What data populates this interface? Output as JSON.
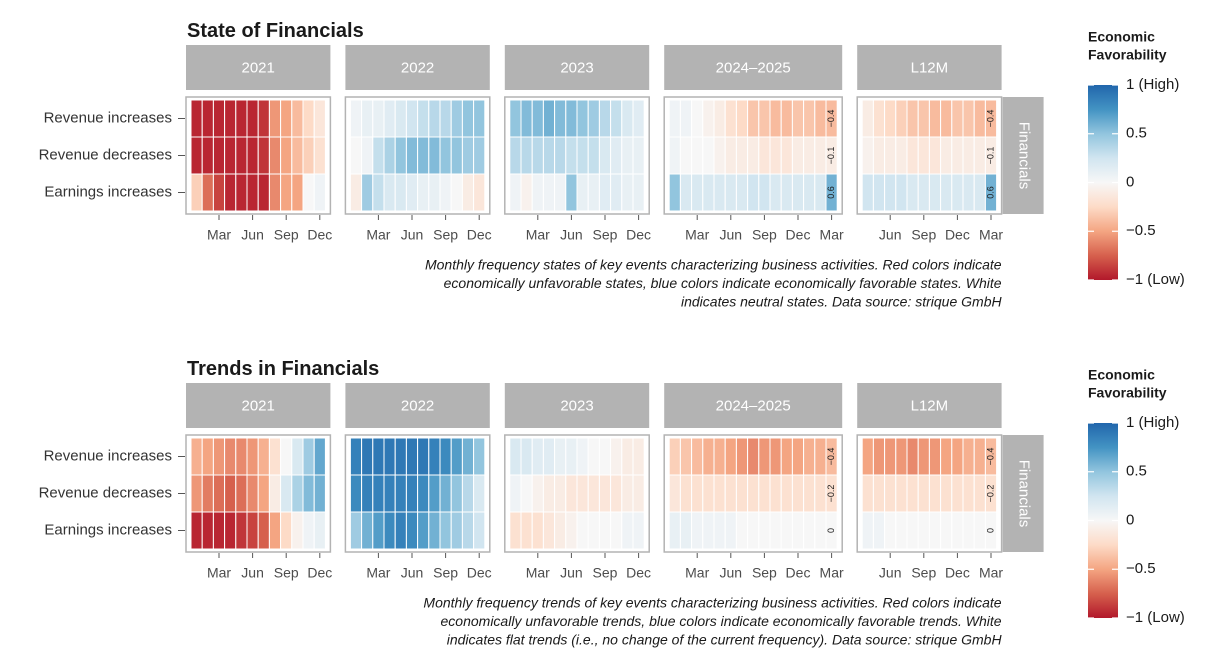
{
  "chart_data": [
    {
      "type": "heatmap",
      "title": "State of Financials",
      "rows": [
        "Revenue increases",
        "Revenue decreases",
        "Earnings increases"
      ],
      "facet": "Financials",
      "panels": [
        {
          "name": "2021",
          "categories": [
            null,
            null,
            "Mar",
            null,
            null,
            "Jun",
            null,
            null,
            "Sep",
            null,
            null,
            "Dec"
          ],
          "values": [
            [
              -0.95,
              -0.95,
              -0.95,
              -0.95,
              -0.95,
              -0.95,
              -0.9,
              -0.55,
              -0.5,
              -0.4,
              -0.25,
              -0.15
            ],
            [
              -0.95,
              -0.95,
              -0.95,
              -0.95,
              -0.95,
              -0.95,
              -0.9,
              -0.6,
              -0.5,
              -0.4,
              -0.3,
              -0.2
            ],
            [
              -0.3,
              -0.7,
              -0.85,
              -0.95,
              -0.95,
              -0.95,
              -0.95,
              -0.6,
              -0.5,
              -0.5,
              0,
              0.05
            ]
          ]
        },
        {
          "name": "2022",
          "categories": [
            null,
            null,
            "Mar",
            null,
            null,
            "Jun",
            null,
            null,
            "Sep",
            null,
            null,
            "Dec"
          ],
          "values": [
            [
              0.05,
              0.1,
              0.1,
              0.15,
              0.2,
              0.25,
              0.3,
              0.35,
              0.35,
              0.45,
              0.5,
              0.5
            ],
            [
              0,
              0.05,
              0.3,
              0.4,
              0.5,
              0.55,
              0.55,
              0.55,
              0.5,
              0.5,
              0.45,
              0.45
            ],
            [
              -0.1,
              0.45,
              0.3,
              0.2,
              0.2,
              0.15,
              0.1,
              0.1,
              0.05,
              0,
              -0.1,
              -0.15
            ]
          ]
        },
        {
          "name": "2023",
          "categories": [
            null,
            null,
            "Mar",
            null,
            null,
            "Jun",
            null,
            null,
            "Sep",
            null,
            null,
            "Dec"
          ],
          "values": [
            [
              0.5,
              0.55,
              0.55,
              0.6,
              0.55,
              0.55,
              0.5,
              0.45,
              0.35,
              0.3,
              0.2,
              0.15
            ],
            [
              0.35,
              0.35,
              0.35,
              0.35,
              0.35,
              0.3,
              0.3,
              0.3,
              0.2,
              0.15,
              0.1,
              0.1
            ],
            [
              0.05,
              -0.05,
              0.05,
              0.05,
              0.05,
              0.5,
              0.1,
              0.1,
              0.15,
              0.15,
              0.1,
              0.1
            ]
          ]
        },
        {
          "name": "2024–2025",
          "categories": [
            null,
            null,
            "Mar",
            null,
            null,
            "Jun",
            null,
            null,
            "Sep",
            null,
            null,
            "Dec",
            null,
            null,
            "Mar"
          ],
          "values": [
            [
              0.05,
              0.05,
              0,
              -0.05,
              -0.1,
              -0.2,
              -0.25,
              -0.35,
              -0.35,
              -0.4,
              -0.4,
              -0.35,
              -0.35,
              -0.4,
              -0.4
            ],
            [
              0.05,
              0,
              0,
              0,
              -0.05,
              -0.1,
              -0.1,
              -0.1,
              -0.15,
              -0.15,
              -0.15,
              -0.1,
              -0.1,
              -0.1,
              -0.1
            ],
            [
              0.5,
              0.2,
              0.2,
              0.2,
              0.2,
              0.2,
              0.2,
              0.25,
              0.25,
              0.2,
              0.2,
              0.2,
              0.2,
              0.2,
              0.6
            ]
          ],
          "value_labels": [
            "−0.4",
            "−0.1",
            "0.6"
          ]
        },
        {
          "name": "L12M",
          "categories": [
            null,
            null,
            "Jun",
            null,
            null,
            "Sep",
            null,
            null,
            "Dec",
            null,
            null,
            "Mar"
          ],
          "values": [
            [
              -0.1,
              -0.2,
              -0.25,
              -0.3,
              -0.35,
              -0.35,
              -0.4,
              -0.4,
              -0.35,
              -0.35,
              -0.4,
              -0.4
            ],
            [
              -0.05,
              -0.1,
              -0.1,
              -0.1,
              -0.15,
              -0.15,
              -0.15,
              -0.1,
              -0.1,
              -0.1,
              -0.1,
              -0.1
            ],
            [
              0.25,
              0.25,
              0.25,
              0.25,
              0.2,
              0.2,
              0.2,
              0.2,
              0.2,
              0.2,
              0.2,
              0.6
            ]
          ],
          "value_labels": [
            "−0.4",
            "−0.1",
            "0.6"
          ]
        }
      ],
      "caption": [
        "Monthly frequency states of key events characterizing business activities. Red colors indicate",
        "economically unfavorable states, blue colors indicate economically favorable states. White",
        "indicates neutral states. Data source: strique GmbH"
      ],
      "colorscale": [
        "#b2182b",
        "#d6604d",
        "#f4a582",
        "#fddbc7",
        "#f7f7f7",
        "#d1e5f0",
        "#92c5de",
        "#4393c3",
        "#2166ac"
      ],
      "legend": {
        "title": [
          "Economic",
          "Favorability"
        ],
        "clim": [
          -1,
          1
        ],
        "ticks": [
          {
            "value": 1,
            "label": "1 (High)"
          },
          0.5,
          0,
          {
            "value": -0.5,
            "label": "−0.5"
          },
          {
            "value": -1,
            "label": "−1 (Low)"
          }
        ]
      }
    },
    {
      "type": "heatmap",
      "title": "Trends in Financials",
      "rows": [
        "Revenue increases",
        "Revenue decreases",
        "Earnings increases"
      ],
      "facet": "Financials",
      "panels": [
        {
          "name": "2021",
          "categories": [
            null,
            null,
            "Mar",
            null,
            null,
            "Jun",
            null,
            null,
            "Sep",
            null,
            null,
            "Dec"
          ],
          "values": [
            [
              -0.45,
              -0.5,
              -0.55,
              -0.6,
              -0.6,
              -0.55,
              -0.45,
              -0.2,
              0,
              0.2,
              0.45,
              0.65
            ],
            [
              -0.55,
              -0.65,
              -0.7,
              -0.75,
              -0.7,
              -0.6,
              -0.5,
              -0.1,
              0.2,
              0.4,
              0.55,
              0.6
            ],
            [
              -0.95,
              -0.95,
              -0.95,
              -0.95,
              -0.9,
              -0.85,
              -0.75,
              -0.5,
              -0.25,
              -0.05,
              0.05,
              0.1
            ]
          ]
        },
        {
          "name": "2022",
          "categories": [
            null,
            null,
            "Mar",
            null,
            null,
            "Jun",
            null,
            null,
            "Sep",
            null,
            null,
            "Dec"
          ],
          "values": [
            [
              0.85,
              0.9,
              0.9,
              0.9,
              0.9,
              0.9,
              0.9,
              0.85,
              0.8,
              0.7,
              0.6,
              0.5
            ],
            [
              0.8,
              0.85,
              0.85,
              0.85,
              0.85,
              0.85,
              0.8,
              0.7,
              0.6,
              0.5,
              0.35,
              0.2
            ],
            [
              0.45,
              0.6,
              0.7,
              0.8,
              0.85,
              0.8,
              0.7,
              0.6,
              0.5,
              0.45,
              0.35,
              0.25
            ]
          ]
        },
        {
          "name": "2023",
          "categories": [
            null,
            null,
            "Mar",
            null,
            null,
            "Jun",
            null,
            null,
            "Sep",
            null,
            null,
            "Dec"
          ],
          "values": [
            [
              0.2,
              0.2,
              0.15,
              0.15,
              0.1,
              0.1,
              0.05,
              0,
              0,
              -0.05,
              -0.1,
              -0.1
            ],
            [
              0.05,
              0,
              -0.05,
              -0.1,
              -0.1,
              -0.15,
              -0.15,
              -0.15,
              -0.15,
              -0.15,
              -0.1,
              -0.1
            ],
            [
              -0.2,
              -0.2,
              -0.2,
              -0.15,
              -0.1,
              -0.05,
              0,
              0,
              0,
              0,
              0.05,
              0.05
            ]
          ]
        },
        {
          "name": "2024–2025",
          "categories": [
            null,
            null,
            "Mar",
            null,
            null,
            "Jun",
            null,
            null,
            "Sep",
            null,
            null,
            "Dec",
            null,
            null,
            "Mar"
          ],
          "values": [
            [
              -0.3,
              -0.35,
              -0.4,
              -0.45,
              -0.45,
              -0.5,
              -0.55,
              -0.6,
              -0.55,
              -0.55,
              -0.5,
              -0.5,
              -0.45,
              -0.45,
              -0.4
            ],
            [
              -0.15,
              -0.2,
              -0.2,
              -0.2,
              -0.2,
              -0.2,
              -0.2,
              -0.2,
              -0.2,
              -0.2,
              -0.2,
              -0.2,
              -0.2,
              -0.2,
              -0.2
            ],
            [
              0.1,
              0.1,
              0.05,
              0.05,
              0.05,
              0.05,
              0,
              0,
              0,
              0,
              0,
              0,
              0,
              0,
              0
            ]
          ],
          "value_labels": [
            "−0.4",
            "−0.2",
            "0"
          ]
        },
        {
          "name": "L12M",
          "categories": [
            null,
            null,
            "Jun",
            null,
            null,
            "Sep",
            null,
            null,
            "Dec",
            null,
            null,
            "Mar"
          ],
          "values": [
            [
              -0.5,
              -0.55,
              -0.55,
              -0.55,
              -0.6,
              -0.55,
              -0.55,
              -0.5,
              -0.5,
              -0.45,
              -0.45,
              -0.4
            ],
            [
              -0.2,
              -0.2,
              -0.2,
              -0.2,
              -0.2,
              -0.2,
              -0.2,
              -0.2,
              -0.2,
              -0.2,
              -0.2,
              -0.2
            ],
            [
              0.05,
              0.05,
              0,
              0,
              0,
              0,
              0,
              0,
              0,
              0,
              0,
              0
            ]
          ],
          "value_labels": [
            "−0.4",
            "−0.2",
            "0"
          ]
        }
      ],
      "caption": [
        "Monthly frequency trends of key events characterizing business activities. Red colors indicate",
        "economically unfavorable trends, blue colors indicate economically favorable trends. White",
        "indicates flat trends (i.e., no change of the current frequency). Data source: strique GmbH"
      ],
      "colorscale": [
        "#b2182b",
        "#d6604d",
        "#f4a582",
        "#fddbc7",
        "#f7f7f7",
        "#d1e5f0",
        "#92c5de",
        "#4393c3",
        "#2166ac"
      ],
      "legend": {
        "title": [
          "Economic",
          "Favorability"
        ],
        "clim": [
          -1,
          1
        ],
        "ticks": [
          {
            "value": 1,
            "label": "1 (High)"
          },
          0.5,
          0,
          {
            "value": -0.5,
            "label": "−0.5"
          },
          {
            "value": -1,
            "label": "−1 (Low)"
          }
        ]
      }
    }
  ]
}
